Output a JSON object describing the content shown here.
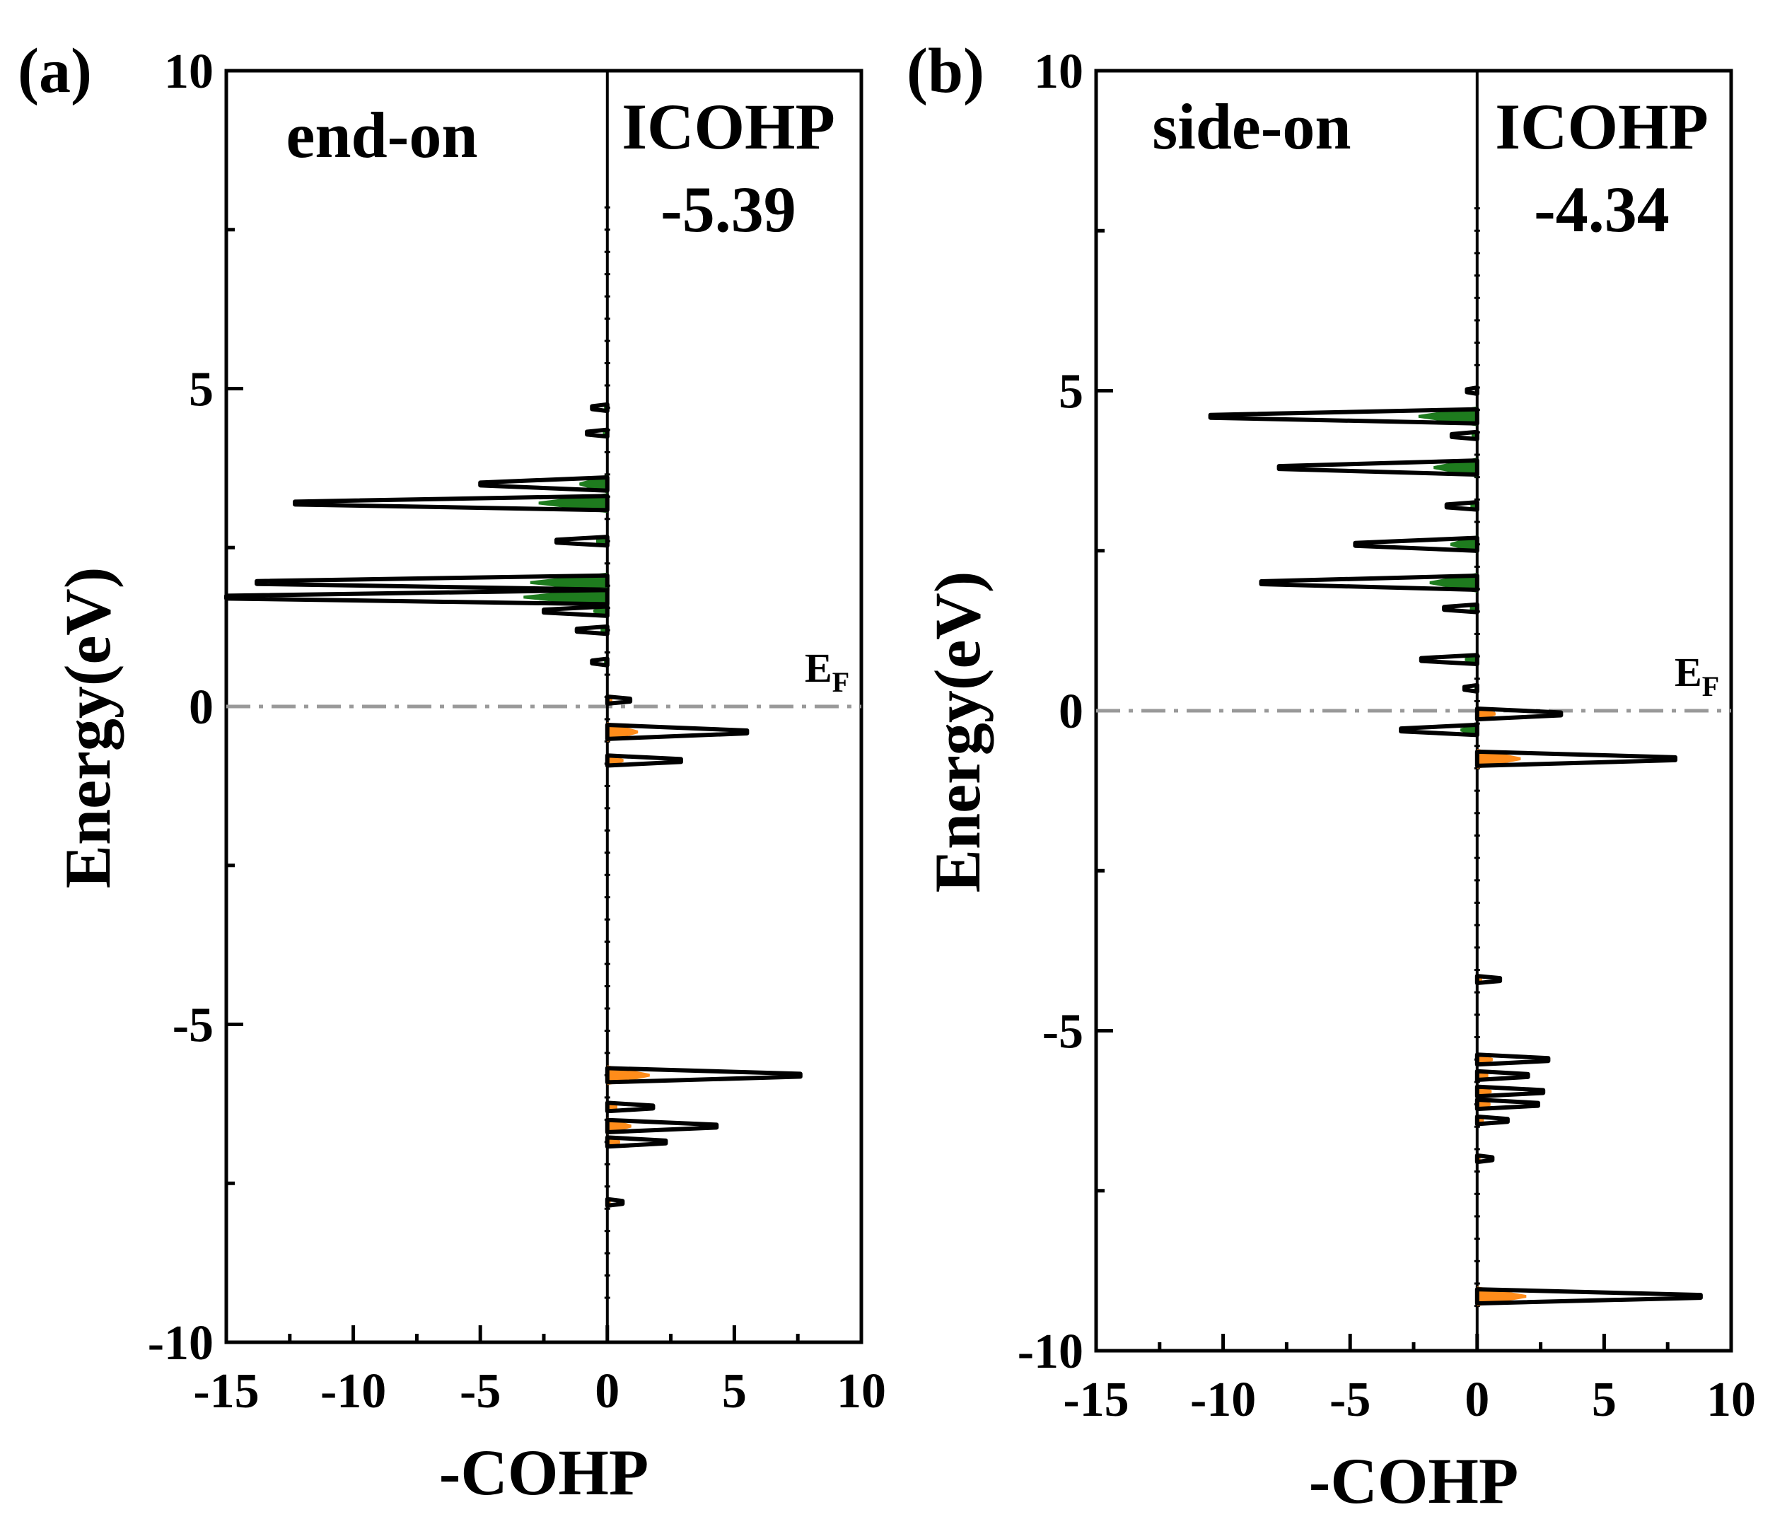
{
  "chart_data": [
    {
      "panel_label": "(a)",
      "type": "line",
      "orientation": "horizontal-COHP-vs-energy",
      "title": "end-on",
      "annotation": {
        "label": "ICOHP",
        "value": "-5.39"
      },
      "xlabel": "-COHP",
      "ylabel": "Energy(eV)",
      "xlim": [
        -15,
        10
      ],
      "ylim": [
        -10,
        10
      ],
      "xticks": [
        "-15",
        "-10",
        "-5",
        "0",
        "5",
        "10"
      ],
      "yticks": [
        "-10",
        "-5",
        "0",
        "5",
        "10"
      ],
      "fermi_level": {
        "label": "E",
        "subscript": "F",
        "energy": 0
      },
      "colors": {
        "antibonding_fill": "#1e7b1e",
        "bonding_fill": "#ff8c1a",
        "line": "#000000",
        "fermi_line": "#999999"
      },
      "peaks": [
        {
          "energy": 4.7,
          "cohp": -0.6
        },
        {
          "energy": 4.3,
          "cohp": -0.8
        },
        {
          "energy": 3.5,
          "cohp": -5.0
        },
        {
          "energy": 3.2,
          "cohp": -12.3
        },
        {
          "energy": 2.6,
          "cohp": -2.0
        },
        {
          "energy": 1.95,
          "cohp": -13.8
        },
        {
          "energy": 1.72,
          "cohp": -15.0
        },
        {
          "energy": 1.5,
          "cohp": -2.5
        },
        {
          "energy": 1.2,
          "cohp": -1.2
        },
        {
          "energy": 0.7,
          "cohp": -0.6
        },
        {
          "energy": 0.1,
          "cohp": 0.9
        },
        {
          "energy": -0.4,
          "cohp": 5.5
        },
        {
          "energy": -0.85,
          "cohp": 2.9
        },
        {
          "energy": -5.8,
          "cohp": 7.6
        },
        {
          "energy": -6.3,
          "cohp": 1.8
        },
        {
          "energy": -6.6,
          "cohp": 4.3
        },
        {
          "energy": -6.85,
          "cohp": 2.3
        },
        {
          "energy": -7.8,
          "cohp": 0.6
        }
      ]
    },
    {
      "panel_label": "(b)",
      "type": "line",
      "orientation": "horizontal-COHP-vs-energy",
      "title": "side-on",
      "annotation": {
        "label": "ICOHP",
        "value": "-4.34"
      },
      "xlabel": "-COHP",
      "ylabel": "Energy(eV)",
      "xlim": [
        -15,
        10
      ],
      "ylim": [
        -10,
        10
      ],
      "xticks": [
        "-15",
        "-10",
        "-5",
        "0",
        "5",
        "10"
      ],
      "yticks": [
        "-10",
        "-5",
        "0",
        "5",
        "10"
      ],
      "fermi_level": {
        "label": "E",
        "subscript": "F",
        "energy": 0
      },
      "colors": {
        "antibonding_fill": "#1e7b1e",
        "bonding_fill": "#ff8c1a",
        "line": "#000000",
        "fermi_line": "#999999"
      },
      "peaks": [
        {
          "energy": 5.0,
          "cohp": -0.4
        },
        {
          "energy": 4.6,
          "cohp": -10.5
        },
        {
          "energy": 4.3,
          "cohp": -1.0
        },
        {
          "energy": 3.8,
          "cohp": -7.8
        },
        {
          "energy": 3.2,
          "cohp": -1.2
        },
        {
          "energy": 2.6,
          "cohp": -4.8
        },
        {
          "energy": 2.0,
          "cohp": -8.5
        },
        {
          "energy": 1.6,
          "cohp": -1.3
        },
        {
          "energy": 0.8,
          "cohp": -2.2
        },
        {
          "energy": 0.35,
          "cohp": -0.5
        },
        {
          "energy": -0.05,
          "cohp": 3.3
        },
        {
          "energy": -0.3,
          "cohp": -3.0
        },
        {
          "energy": -0.75,
          "cohp": 7.8
        },
        {
          "energy": -4.2,
          "cohp": 0.9
        },
        {
          "energy": -5.45,
          "cohp": 2.8
        },
        {
          "energy": -5.7,
          "cohp": 2.0
        },
        {
          "energy": -5.95,
          "cohp": 2.6
        },
        {
          "energy": -6.15,
          "cohp": 2.4
        },
        {
          "energy": -6.4,
          "cohp": 1.2
        },
        {
          "energy": -7.0,
          "cohp": 0.6
        },
        {
          "energy": -9.15,
          "cohp": 8.8
        }
      ]
    }
  ]
}
